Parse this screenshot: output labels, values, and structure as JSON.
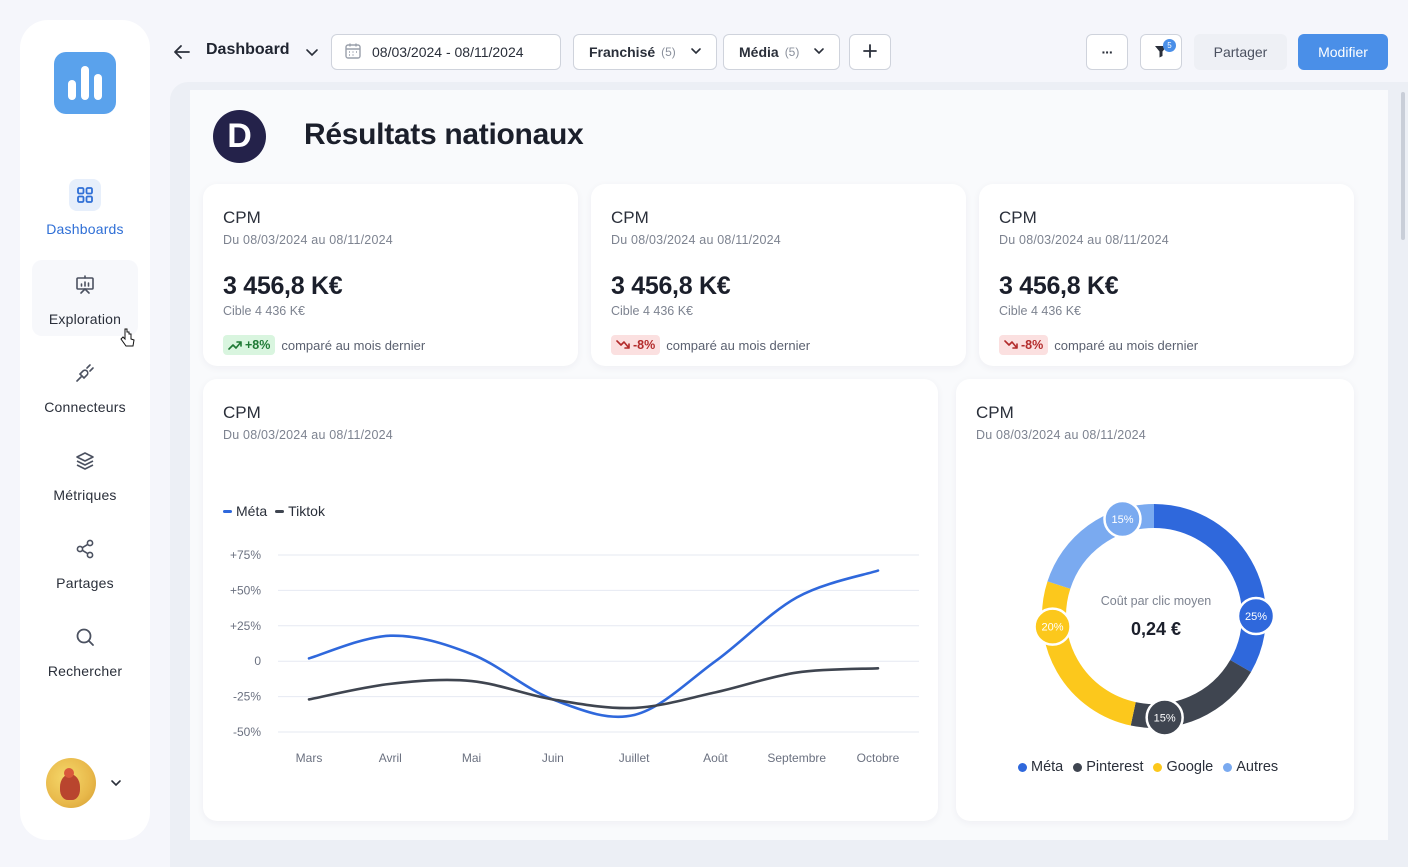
{
  "sidebar": {
    "items": [
      {
        "label": "Dashboards",
        "icon": "dashboard-grid-icon",
        "active": true
      },
      {
        "label": "Exploration",
        "icon": "presentation-chart-icon"
      },
      {
        "label": "Connecteurs",
        "icon": "plug-icon"
      },
      {
        "label": "Métriques",
        "icon": "layers-icon"
      },
      {
        "label": "Partages",
        "icon": "share-nodes-icon"
      },
      {
        "label": "Rechercher",
        "icon": "search-icon"
      }
    ]
  },
  "header": {
    "title": "Dashboard",
    "date_range": "08/03/2024 - 08/11/2024",
    "filters": [
      {
        "label": "Franchisé",
        "count": "(5)"
      },
      {
        "label": "Média",
        "count": "(5)"
      }
    ],
    "more_label": "···",
    "filter_badge": "5",
    "share_label": "Partager",
    "edit_label": "Modifier"
  },
  "page": {
    "badge_letter": "D",
    "title": "Résultats nationaux"
  },
  "kpis": [
    {
      "title": "CPM",
      "period": "Du 08/03/2024 au 08/11/2024",
      "value": "3 456,8 K€",
      "target": "Cible  4 436 K€",
      "trend": "+8%",
      "trend_dir": "up",
      "trend_text": "comparé au mois dernier"
    },
    {
      "title": "CPM",
      "period": "Du 08/03/2024 au 08/11/2024",
      "value": "3 456,8 K€",
      "target": "Cible  4 436 K€",
      "trend": "-8%",
      "trend_dir": "down",
      "trend_text": "comparé au mois dernier"
    },
    {
      "title": "CPM",
      "period": "Du 08/03/2024 au 08/11/2024",
      "value": "3 456,8 K€",
      "target": "Cible  4 436 K€",
      "trend": "-8%",
      "trend_dir": "down",
      "trend_text": "comparé au mois dernier"
    }
  ],
  "line_card": {
    "title": "CPM",
    "period": "Du 08/03/2024 au 08/11/2024"
  },
  "donut_card": {
    "title": "CPM",
    "period": "Du 08/03/2024 au 08/11/2024",
    "center_label": "Coût par clic moyen",
    "center_value": "0,24 €"
  },
  "colors": {
    "meta": "#2f68dc",
    "tiktok": "#3f4550",
    "pinterest": "#3f4550",
    "google": "#fcc81c",
    "autres": "#7aaaf0"
  },
  "chart_data": [
    {
      "type": "line",
      "x": [
        "Mars",
        "Avril",
        "Mai",
        "Juin",
        "Juillet",
        "Août",
        "Septembre",
        "Octobre"
      ],
      "series": [
        {
          "name": "Méta",
          "values": [
            2,
            18,
            5,
            -27,
            -38,
            0,
            45,
            64
          ]
        },
        {
          "name": "Tiktok",
          "values": [
            -27,
            -16,
            -14,
            -27,
            -33,
            -22,
            -8,
            -5
          ]
        }
      ],
      "y_ticks": [
        "+75%",
        "+50%",
        "+25%",
        "0",
        "-25%",
        "-50%"
      ],
      "ylim": [
        -50,
        75
      ],
      "grid": true,
      "legend": "top-left"
    },
    {
      "type": "pie",
      "donut": true,
      "categories": [
        "Méta",
        "Pinterest",
        "Google",
        "Autres"
      ],
      "values": [
        25,
        15,
        20,
        15
      ],
      "labels": [
        "25%",
        "15%",
        "20%",
        "15%"
      ],
      "legend": "bottom"
    }
  ]
}
